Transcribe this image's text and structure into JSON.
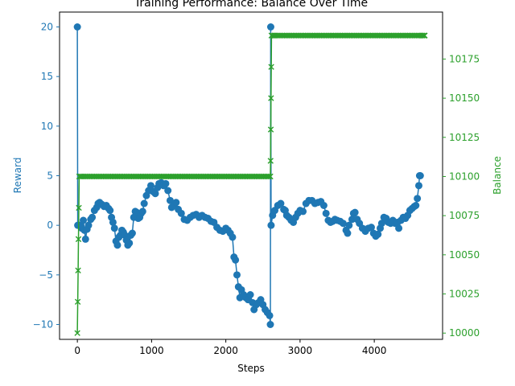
{
  "chart_data": {
    "type": "line",
    "title": "Training Performance: Balance Over Time",
    "xlabel": "Steps",
    "ylabel_left": "Reward",
    "ylabel_right": "Balance",
    "xlim": [
      -240,
      4920
    ],
    "ylim_left": [
      -11.5,
      21.5
    ],
    "ylim_right": [
      9996,
      10205
    ],
    "x_ticks": [
      0,
      1000,
      2000,
      3000,
      4000
    ],
    "y_left_ticks": [
      -10,
      -5,
      0,
      5,
      10,
      15,
      20
    ],
    "y_right_ticks": [
      10000,
      10025,
      10050,
      10075,
      10100,
      10125,
      10150,
      10175
    ],
    "grid": false,
    "colors": {
      "reward": "#1f77b4",
      "balance": "#2ca02c"
    },
    "series": [
      {
        "axis": "left",
        "marker": "circle",
        "points": [
          [
            0,
            20
          ],
          [
            5,
            0
          ],
          [
            30,
            0
          ],
          [
            60,
            -0.3
          ],
          [
            80,
            0.5
          ],
          [
            95,
            -0.5
          ],
          [
            110,
            -1.4
          ],
          [
            130,
            -0.4
          ],
          [
            150,
            0
          ],
          [
            180,
            0.6
          ],
          [
            200,
            0.8
          ],
          [
            230,
            1.5
          ],
          [
            260,
            1.8
          ],
          [
            280,
            2.2
          ],
          [
            300,
            2.3
          ],
          [
            330,
            2.1
          ],
          [
            360,
            1.9
          ],
          [
            390,
            2.0
          ],
          [
            420,
            1.7
          ],
          [
            440,
            1.5
          ],
          [
            460,
            0.8
          ],
          [
            480,
            0.3
          ],
          [
            500,
            -0.3
          ],
          [
            520,
            -1.6
          ],
          [
            540,
            -2.0
          ],
          [
            560,
            -1.2
          ],
          [
            580,
            -1.0
          ],
          [
            600,
            -0.5
          ],
          [
            620,
            -0.7
          ],
          [
            640,
            -1.0
          ],
          [
            660,
            -1.5
          ],
          [
            680,
            -2.0
          ],
          [
            700,
            -1.8
          ],
          [
            720,
            -1.0
          ],
          [
            740,
            -0.8
          ],
          [
            760,
            0.8
          ],
          [
            780,
            1.4
          ],
          [
            800,
            1.3
          ],
          [
            820,
            0.7
          ],
          [
            840,
            0.8
          ],
          [
            860,
            1.2
          ],
          [
            880,
            1.4
          ],
          [
            900,
            2.2
          ],
          [
            930,
            3.0
          ],
          [
            960,
            3.5
          ],
          [
            990,
            4.0
          ],
          [
            1020,
            3.4
          ],
          [
            1050,
            3.2
          ],
          [
            1080,
            3.8
          ],
          [
            1100,
            4.2
          ],
          [
            1130,
            4.3
          ],
          [
            1160,
            4.0
          ],
          [
            1190,
            4.2
          ],
          [
            1220,
            3.5
          ],
          [
            1250,
            2.5
          ],
          [
            1270,
            1.8
          ],
          [
            1300,
            2.0
          ],
          [
            1330,
            2.3
          ],
          [
            1360,
            1.6
          ],
          [
            1400,
            1.2
          ],
          [
            1440,
            0.6
          ],
          [
            1480,
            0.5
          ],
          [
            1520,
            0.8
          ],
          [
            1560,
            1.0
          ],
          [
            1600,
            1.1
          ],
          [
            1640,
            0.8
          ],
          [
            1680,
            1.0
          ],
          [
            1720,
            0.8
          ],
          [
            1760,
            0.7
          ],
          [
            1800,
            0.4
          ],
          [
            1840,
            0.3
          ],
          [
            1880,
            -0.2
          ],
          [
            1920,
            -0.5
          ],
          [
            1960,
            -0.6
          ],
          [
            2000,
            -0.3
          ],
          [
            2030,
            -0.5
          ],
          [
            2060,
            -0.8
          ],
          [
            2090,
            -1.2
          ],
          [
            2110,
            -3.2
          ],
          [
            2130,
            -3.5
          ],
          [
            2150,
            -5.0
          ],
          [
            2170,
            -6.2
          ],
          [
            2190,
            -7.3
          ],
          [
            2210,
            -6.5
          ],
          [
            2240,
            -7.0
          ],
          [
            2270,
            -7.3
          ],
          [
            2300,
            -7.5
          ],
          [
            2330,
            -7.0
          ],
          [
            2360,
            -7.8
          ],
          [
            2380,
            -8.5
          ],
          [
            2410,
            -8.0
          ],
          [
            2440,
            -7.8
          ],
          [
            2470,
            -7.5
          ],
          [
            2500,
            -8.0
          ],
          [
            2530,
            -8.5
          ],
          [
            2560,
            -8.8
          ],
          [
            2590,
            -9.1
          ],
          [
            2600,
            -10
          ],
          [
            2605,
            20
          ],
          [
            2610,
            0
          ],
          [
            2630,
            1.0
          ],
          [
            2660,
            1.5
          ],
          [
            2700,
            2.0
          ],
          [
            2740,
            2.2
          ],
          [
            2780,
            1.6
          ],
          [
            2800,
            1.5
          ],
          [
            2820,
            1.0
          ],
          [
            2850,
            0.8
          ],
          [
            2880,
            0.5
          ],
          [
            2910,
            0.3
          ],
          [
            2940,
            0.8
          ],
          [
            2970,
            1.2
          ],
          [
            3000,
            1.5
          ],
          [
            3040,
            1.4
          ],
          [
            3080,
            2.2
          ],
          [
            3120,
            2.5
          ],
          [
            3160,
            2.5
          ],
          [
            3200,
            2.2
          ],
          [
            3240,
            2.3
          ],
          [
            3280,
            2.4
          ],
          [
            3320,
            2.0
          ],
          [
            3350,
            1.2
          ],
          [
            3380,
            0.5
          ],
          [
            3410,
            0.3
          ],
          [
            3440,
            0.4
          ],
          [
            3470,
            0.6
          ],
          [
            3500,
            0.5
          ],
          [
            3540,
            0.4
          ],
          [
            3580,
            0.2
          ],
          [
            3620,
            -0.5
          ],
          [
            3640,
            -0.8
          ],
          [
            3660,
            0
          ],
          [
            3700,
            0.6
          ],
          [
            3720,
            1.2
          ],
          [
            3740,
            1.3
          ],
          [
            3770,
            0.6
          ],
          [
            3800,
            0.2
          ],
          [
            3840,
            -0.3
          ],
          [
            3880,
            -0.6
          ],
          [
            3920,
            -0.3
          ],
          [
            3960,
            -0.2
          ],
          [
            3990,
            -0.8
          ],
          [
            4020,
            -1.1
          ],
          [
            4050,
            -0.9
          ],
          [
            4080,
            -0.3
          ],
          [
            4100,
            0.2
          ],
          [
            4130,
            0.8
          ],
          [
            4160,
            0.7
          ],
          [
            4190,
            0.3
          ],
          [
            4220,
            0.2
          ],
          [
            4250,
            0.5
          ],
          [
            4280,
            0.2
          ],
          [
            4310,
            0.3
          ],
          [
            4330,
            -0.3
          ],
          [
            4360,
            0.5
          ],
          [
            4390,
            0.8
          ],
          [
            4420,
            0.7
          ],
          [
            4450,
            1.0
          ],
          [
            4480,
            1.5
          ],
          [
            4510,
            1.7
          ],
          [
            4540,
            1.9
          ],
          [
            4560,
            2.0
          ],
          [
            4580,
            2.7
          ],
          [
            4600,
            4.0
          ],
          [
            4610,
            5.0
          ],
          [
            4620,
            5.0
          ]
        ]
      },
      {
        "axis": "right",
        "marker": "x",
        "points": [
          [
            0,
            10000
          ],
          [
            5,
            10020
          ],
          [
            10,
            10040
          ],
          [
            15,
            10060
          ],
          [
            20,
            10080
          ],
          [
            25,
            10100
          ],
          [
            60,
            10100
          ],
          [
            120,
            10100
          ],
          [
            180,
            10100
          ],
          [
            240,
            10100
          ],
          [
            300,
            10100
          ],
          [
            360,
            10100
          ],
          [
            420,
            10100
          ],
          [
            480,
            10100
          ],
          [
            540,
            10100
          ],
          [
            600,
            10100
          ],
          [
            660,
            10100
          ],
          [
            720,
            10100
          ],
          [
            780,
            10100
          ],
          [
            840,
            10100
          ],
          [
            900,
            10100
          ],
          [
            960,
            10100
          ],
          [
            1020,
            10100
          ],
          [
            1080,
            10100
          ],
          [
            1140,
            10100
          ],
          [
            1200,
            10100
          ],
          [
            1260,
            10100
          ],
          [
            1320,
            10100
          ],
          [
            1380,
            10100
          ],
          [
            1440,
            10100
          ],
          [
            1500,
            10100
          ],
          [
            1560,
            10100
          ],
          [
            1620,
            10100
          ],
          [
            1680,
            10100
          ],
          [
            1740,
            10100
          ],
          [
            1800,
            10100
          ],
          [
            1860,
            10100
          ],
          [
            1920,
            10100
          ],
          [
            1980,
            10100
          ],
          [
            2040,
            10100
          ],
          [
            2100,
            10100
          ],
          [
            2160,
            10100
          ],
          [
            2220,
            10100
          ],
          [
            2280,
            10100
          ],
          [
            2340,
            10100
          ],
          [
            2400,
            10100
          ],
          [
            2460,
            10100
          ],
          [
            2520,
            10100
          ],
          [
            2580,
            10100
          ],
          [
            2600,
            10100
          ],
          [
            2603,
            10110
          ],
          [
            2606,
            10130
          ],
          [
            2609,
            10150
          ],
          [
            2612,
            10170
          ],
          [
            2615,
            10190
          ],
          [
            2660,
            10190
          ],
          [
            2720,
            10190
          ],
          [
            2780,
            10190
          ],
          [
            2840,
            10190
          ],
          [
            2900,
            10190
          ],
          [
            2960,
            10190
          ],
          [
            3020,
            10190
          ],
          [
            3080,
            10190
          ],
          [
            3140,
            10190
          ],
          [
            3200,
            10190
          ],
          [
            3260,
            10190
          ],
          [
            3320,
            10190
          ],
          [
            3380,
            10190
          ],
          [
            3440,
            10190
          ],
          [
            3500,
            10190
          ],
          [
            3560,
            10190
          ],
          [
            3620,
            10190
          ],
          [
            3680,
            10190
          ],
          [
            3740,
            10190
          ],
          [
            3800,
            10190
          ],
          [
            3860,
            10190
          ],
          [
            3920,
            10190
          ],
          [
            3980,
            10190
          ],
          [
            4040,
            10190
          ],
          [
            4100,
            10190
          ],
          [
            4160,
            10190
          ],
          [
            4220,
            10190
          ],
          [
            4280,
            10190
          ],
          [
            4340,
            10190
          ],
          [
            4400,
            10190
          ],
          [
            4460,
            10190
          ],
          [
            4520,
            10190
          ],
          [
            4580,
            10190
          ],
          [
            4620,
            10190
          ],
          [
            4650,
            10190
          ],
          [
            4680,
            10190
          ]
        ]
      }
    ]
  }
}
